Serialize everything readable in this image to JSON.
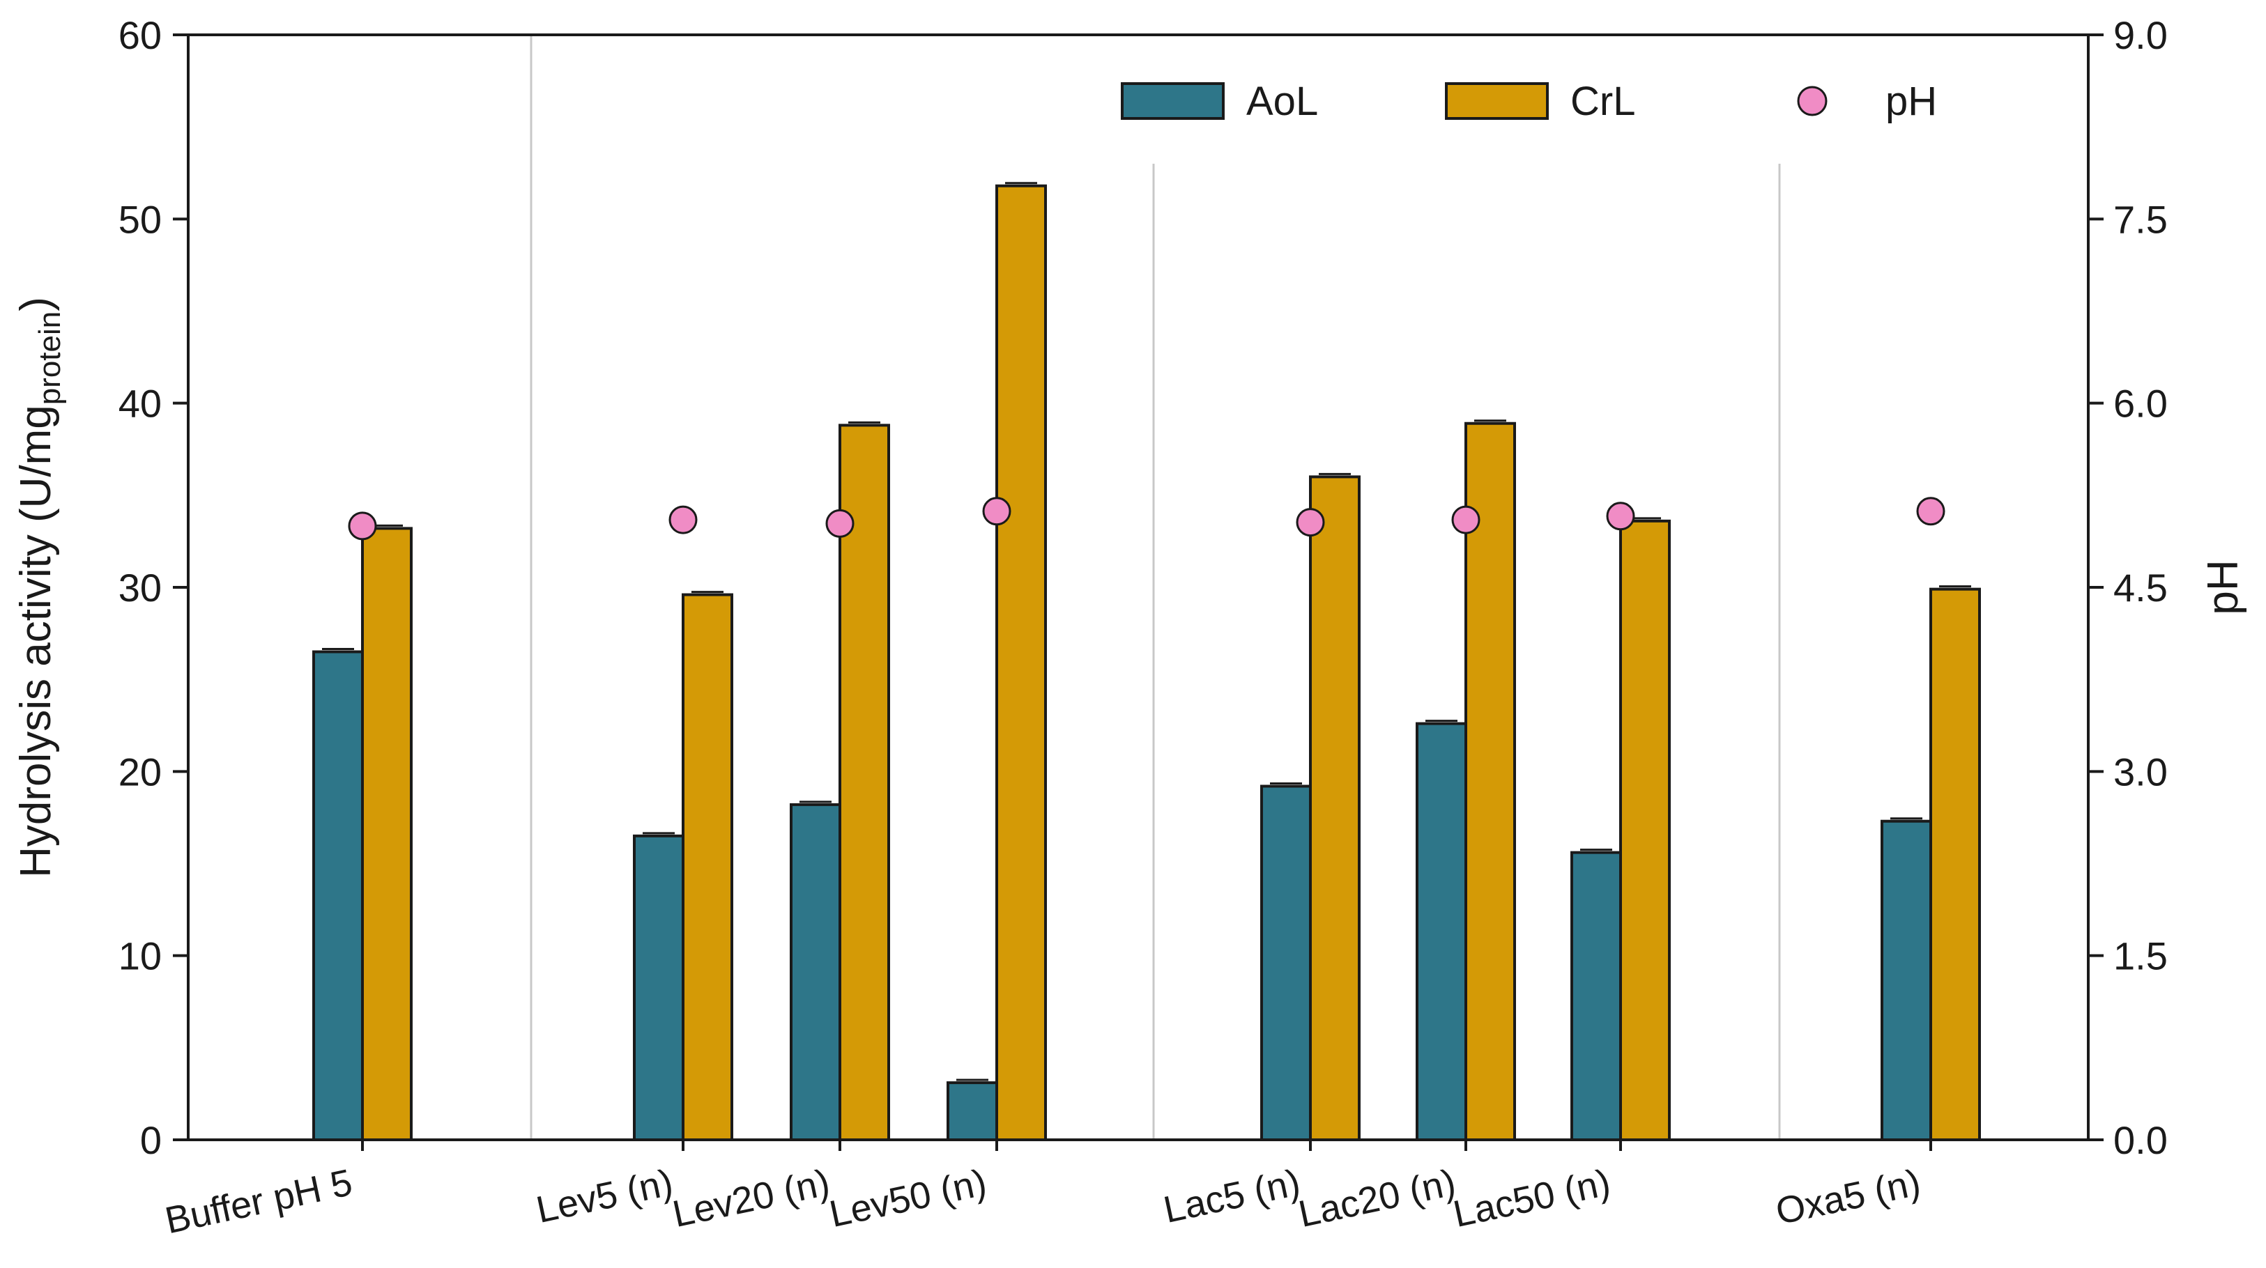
{
  "chart_data": {
    "type": "bar",
    "title": "",
    "categories": [
      "Buffer pH 5",
      "Lev5 (n)",
      "Lev20 (n)",
      "Lev50 (n)",
      "Lac5 (n)",
      "Lac20 (n)",
      "Lac50 (n)",
      "Oxa5 (n)"
    ],
    "series": [
      {
        "name": "AoL",
        "values": [
          26.5,
          16.5,
          18.2,
          3.1,
          19.2,
          22.6,
          15.6,
          17.3
        ],
        "color": "#2E7689"
      },
      {
        "name": "CrL",
        "values": [
          33.2,
          29.6,
          38.8,
          51.8,
          36.0,
          38.9,
          33.6,
          29.9
        ],
        "color": "#D49A06"
      }
    ],
    "ph": {
      "name": "pH",
      "values": [
        5.0,
        5.05,
        5.02,
        5.12,
        5.03,
        5.05,
        5.08,
        5.12
      ],
      "color": "#F08CC5"
    },
    "ylabel_main": "Hydrolysis activity (U/mg",
    "ylabel_sub": "protein",
    "ylabel_close": ")",
    "ylim": [
      0,
      60
    ],
    "yticks": [
      "0",
      "10",
      "20",
      "30",
      "40",
      "50",
      "60"
    ],
    "ylabel_right": "pH",
    "ylim_right": [
      0,
      9
    ],
    "yticks_right": [
      "0.0",
      "1.5",
      "3.0",
      "4.5",
      "6.0",
      "7.5",
      "9.0"
    ],
    "groups": [
      [
        0
      ],
      [
        1,
        2,
        3
      ],
      [
        4,
        5,
        6
      ],
      [
        7
      ]
    ],
    "legend_position": "top-right",
    "grid": false
  }
}
